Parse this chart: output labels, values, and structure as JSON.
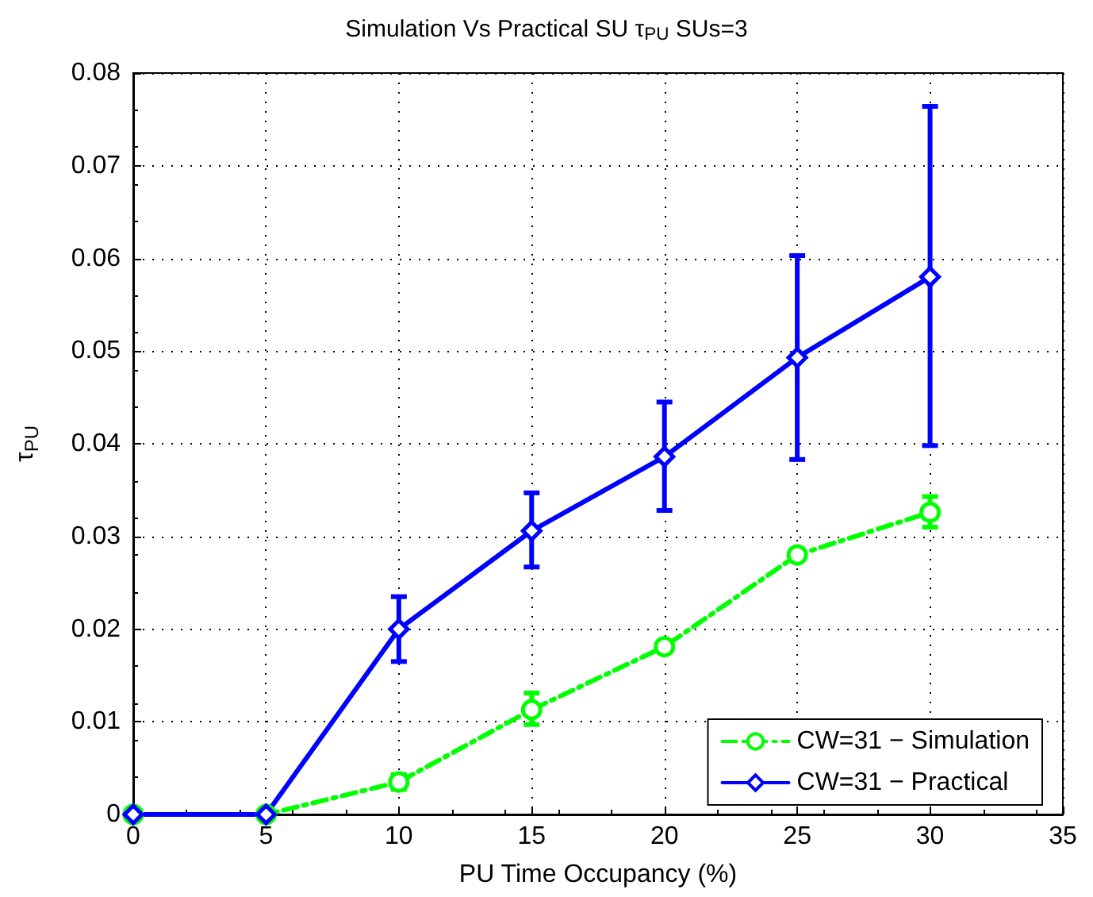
{
  "chart_data": {
    "type": "line",
    "title": "Simulation Vs Practical SU τ$_{PU}$ SUs=3",
    "xlabel": "PU Time Occupancy (%)",
    "ylabel": "τ$_{PU}$",
    "x": [
      0,
      5,
      10,
      15,
      20,
      25,
      30
    ],
    "series": [
      {
        "name": "CW=31 − Simulation",
        "color": "#00ff00",
        "marker": "circle",
        "line_style": "dashed",
        "values": [
          0,
          0,
          0.0035,
          0.0113,
          0.0181,
          0.028,
          0.0326
        ],
        "errors": [
          null,
          null,
          [
            0.0027,
            0.0043
          ],
          [
            0.0097,
            0.0131
          ],
          null,
          null,
          [
            0.031,
            0.0343
          ]
        ]
      },
      {
        "name": "CW=31 − Practical",
        "color": "#0000ff",
        "marker": "diamond",
        "line_style": "solid",
        "values": [
          0,
          0,
          0.02,
          0.0306,
          0.0386,
          0.0493,
          0.058
        ],
        "errors": [
          null,
          null,
          [
            0.0165,
            0.0235
          ],
          [
            0.0267,
            0.0347
          ],
          [
            0.0328,
            0.0445
          ],
          [
            0.0383,
            0.0603
          ],
          [
            0.0398,
            0.0764
          ]
        ]
      }
    ],
    "xlim": [
      0,
      35
    ],
    "xticks": [
      0,
      5,
      10,
      15,
      20,
      25,
      30,
      35
    ],
    "ylim": [
      0,
      0.08
    ],
    "yticks": [
      0,
      0.01,
      0.02,
      0.03,
      0.04,
      0.05,
      0.06,
      0.07,
      0.08
    ],
    "grid": true,
    "legend": "bottom right"
  }
}
